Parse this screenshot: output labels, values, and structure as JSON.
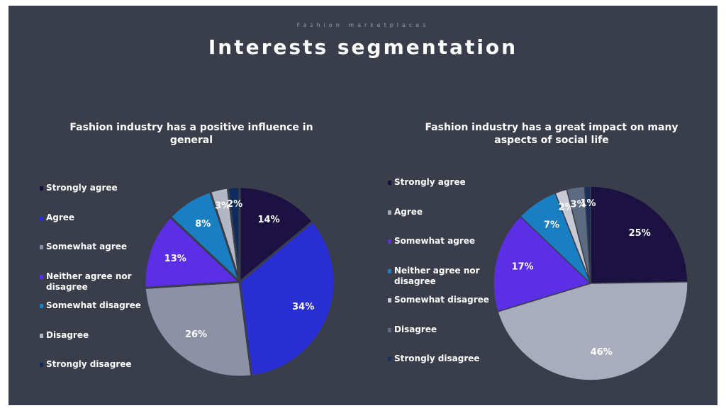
{
  "header": {
    "subtitle": "Fashion marketplaces",
    "title": "Interests segmentation"
  },
  "chart_data": [
    {
      "type": "pie",
      "title": "Fashion industry has a positive influence in general",
      "categories": [
        "Strongly agree",
        "Agree",
        "Somewhat agree",
        "Neither agree nor disagree",
        "Somewhat disagree",
        "Disagree",
        "Strongly disagree"
      ],
      "values": [
        14,
        34,
        26,
        13,
        8,
        3,
        2
      ],
      "value_labels": [
        "14%",
        "34%",
        "26%",
        "13%",
        "8%",
        "3%",
        "2%"
      ],
      "colors": [
        "#1c1242",
        "#2a2fd4",
        "#8d91a6",
        "#5a2fe6",
        "#1a7ec2",
        "#b3b6c3",
        "#0f2b5e"
      ]
    },
    {
      "type": "pie",
      "title": "Fashion industry has a great impact on many aspects of social life",
      "categories": [
        "Strongly agree",
        "Agree",
        "Somewhat agree",
        "Neither agree nor disagree",
        "Somewhat disagree",
        "Disagree",
        "Strongly disagree"
      ],
      "values": [
        25,
        46,
        17,
        7,
        2,
        3,
        1
      ],
      "value_labels": [
        "25%",
        "46%",
        "17%",
        "7%",
        "2%",
        "3%",
        "1%"
      ],
      "colors": [
        "#1c1242",
        "#a9acbc",
        "#5a2fe6",
        "#1a7ec2",
        "#c7cad4",
        "#5d6b82",
        "#17305e"
      ]
    }
  ]
}
